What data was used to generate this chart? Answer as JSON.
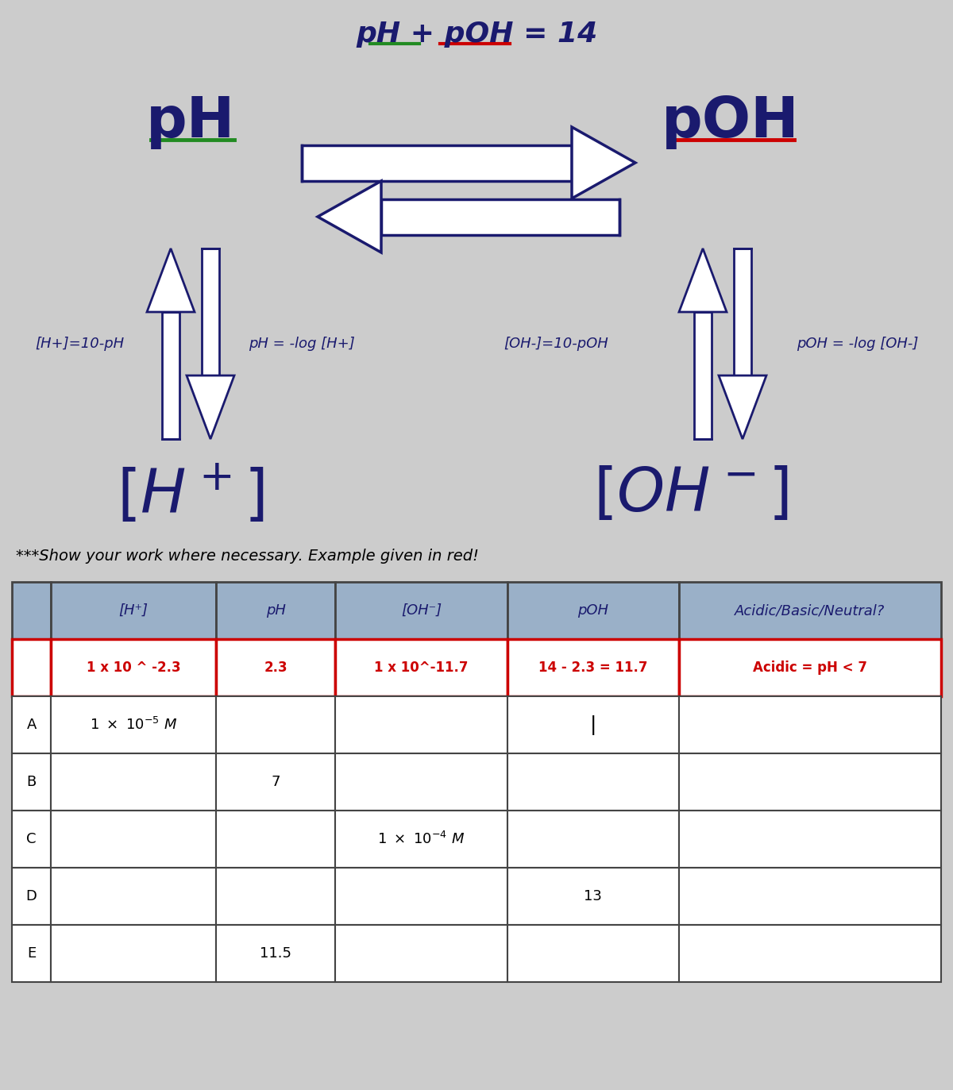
{
  "bg_color": "#cccccc",
  "title_color": "#1a1a6e",
  "arrow_color": "#1a1a6e",
  "ph_underline_color": "#228B22",
  "poh_underline_color": "#cc0000",
  "red_color": "#cc0000",
  "dark_blue": "#1a1a6e",
  "header_color": "#9ab0c8",
  "grid_color": "#444444",
  "note": "***Show your work where necessary. Example given in red!",
  "table_headers": [
    "[H⁺]",
    "pH",
    "[OH⁻]",
    "pOH",
    "Acidic/Basic/Neutral?"
  ],
  "example_row": [
    "1 x 10 ^ -2.3",
    "2.3",
    "1 x 10^-11.7",
    "14 - 2.3 = 11.7",
    "Acidic = pH < 7"
  ],
  "rows": [
    [
      "A",
      "1 x 10⁻⁵ M",
      "",
      "",
      "",
      ""
    ],
    [
      "B",
      "",
      "7",
      "",
      "",
      ""
    ],
    [
      "C",
      "",
      "",
      "1 x 10⁻⁴ M",
      "",
      ""
    ],
    [
      "D",
      "",
      "",
      "",
      "13",
      ""
    ],
    [
      "E",
      "",
      "11.5",
      "",
      "",
      ""
    ]
  ]
}
